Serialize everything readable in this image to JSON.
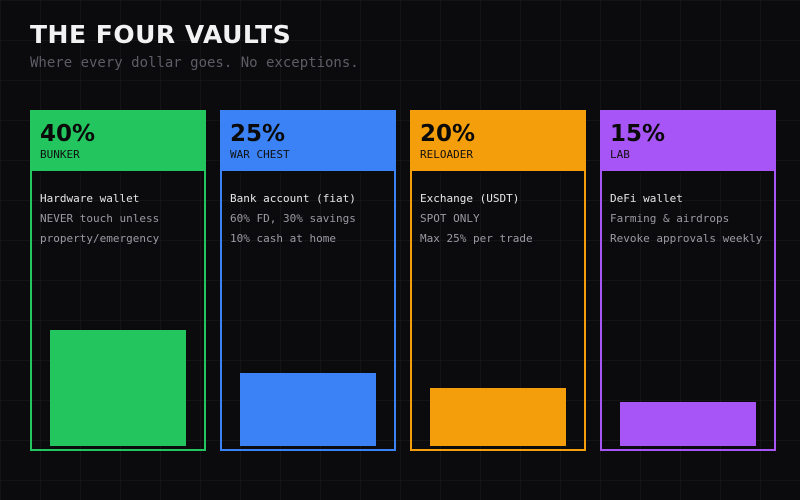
{
  "header": {
    "title": "THE FOUR VAULTS",
    "subtitle": "Where every dollar goes. No exceptions."
  },
  "vaults": [
    {
      "percent_label": "40%",
      "name": "BUNKER",
      "lines": [
        "Hardware wallet",
        "NEVER touch unless",
        "property/emergency"
      ],
      "share": 40,
      "color": "#22c55e"
    },
    {
      "percent_label": "25%",
      "name": "WAR CHEST",
      "lines": [
        "Bank account (fiat)",
        "60% FD, 30% savings",
        "10% cash at home"
      ],
      "share": 25,
      "color": "#3b82f6"
    },
    {
      "percent_label": "20%",
      "name": "RELOADER",
      "lines": [
        "Exchange (USDT)",
        "SPOT ONLY",
        "Max 25% per trade"
      ],
      "share": 20,
      "color": "#f59e0b"
    },
    {
      "percent_label": "15%",
      "name": "LAB",
      "lines": [
        "DeFi wallet",
        "Farming & airdrops",
        "Revoke approvals weekly"
      ],
      "share": 15,
      "color": "#a855f7"
    }
  ]
}
